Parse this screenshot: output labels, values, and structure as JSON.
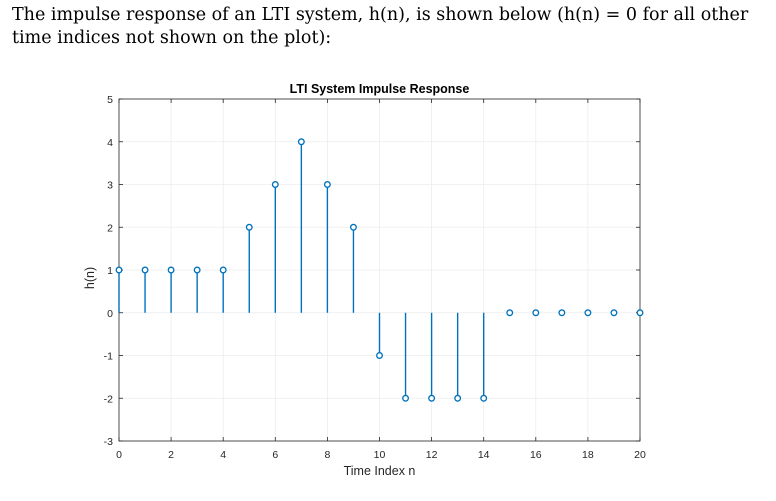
{
  "intro": {
    "line1": "The impulse response of an LTI system, h(n), is shown below (h(n) = 0 for all other",
    "line2": "time indices not shown on the plot):"
  },
  "chart_data": {
    "type": "stem",
    "title": "LTI System Impulse Response",
    "xlabel": "Time Index n",
    "ylabel": "h(n)",
    "xlim": [
      0,
      20
    ],
    "ylim": [
      -3,
      5
    ],
    "xticks": [
      0,
      2,
      4,
      6,
      8,
      10,
      12,
      14,
      16,
      18,
      20
    ],
    "yticks": [
      -3,
      -2,
      -1,
      0,
      1,
      2,
      3,
      4,
      5
    ],
    "grid": true,
    "x": [
      0,
      1,
      2,
      3,
      4,
      5,
      6,
      7,
      8,
      9,
      10,
      11,
      12,
      13,
      14,
      15,
      16,
      17,
      18,
      19,
      20
    ],
    "values": [
      1,
      1,
      1,
      1,
      1,
      2,
      3,
      4,
      3,
      2,
      -1,
      -2,
      -2,
      -2,
      -2,
      0,
      0,
      0,
      0,
      0,
      0
    ],
    "color": "#0072BD"
  }
}
